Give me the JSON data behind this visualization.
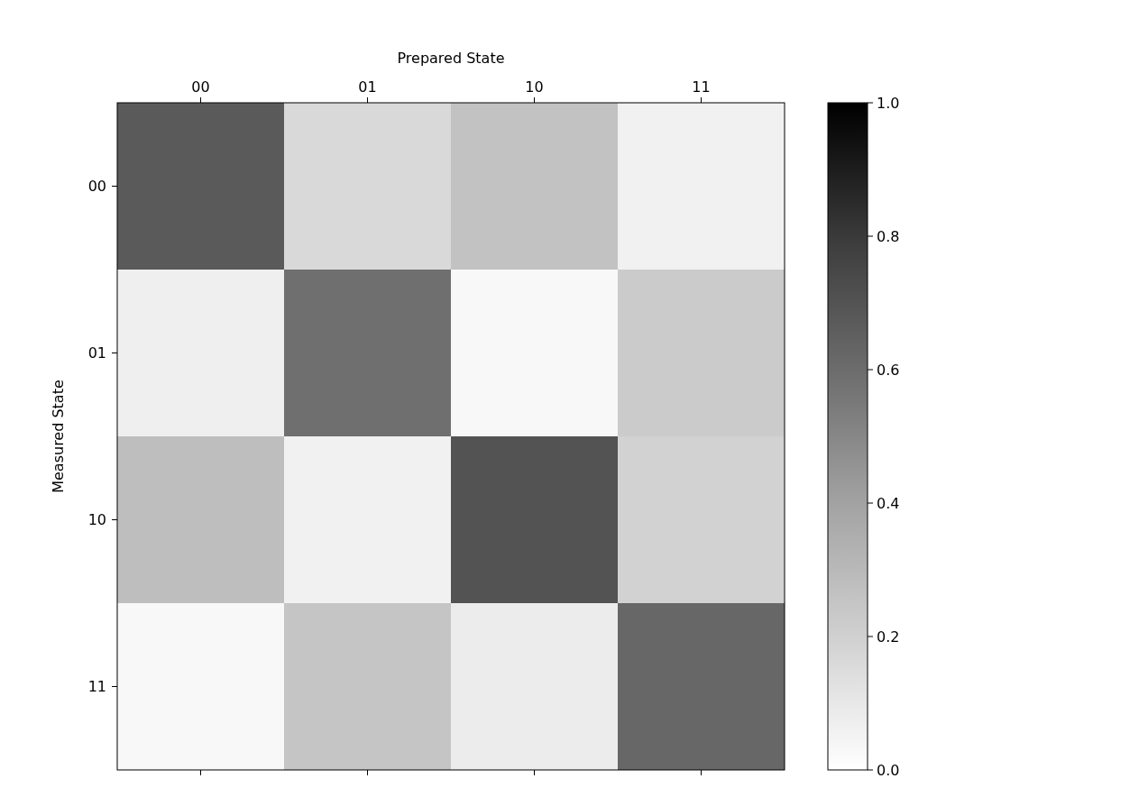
{
  "chart_data": {
    "type": "heatmap",
    "xlabel": "Prepared State",
    "ylabel": "Measured State",
    "categories": [
      "00",
      "01",
      "10",
      "11"
    ],
    "y_categories": [
      "00",
      "01",
      "10",
      "11"
    ],
    "cells": [
      [
        0.67,
        0.16,
        0.26,
        0.06
      ],
      [
        0.07,
        0.59,
        0.03,
        0.22
      ],
      [
        0.28,
        0.06,
        0.7,
        0.19
      ],
      [
        0.03,
        0.25,
        0.08,
        0.62
      ]
    ],
    "clim": [
      0,
      1
    ],
    "cticks": [
      {
        "value": 0,
        "label": "0.0"
      },
      {
        "value": 0.2,
        "label": "0.2"
      },
      {
        "value": 0.4,
        "label": "0.4"
      },
      {
        "value": 0.6,
        "label": "0.6"
      },
      {
        "value": 0.8,
        "label": "0.8"
      },
      {
        "value": 1,
        "label": "1.0"
      }
    ]
  }
}
